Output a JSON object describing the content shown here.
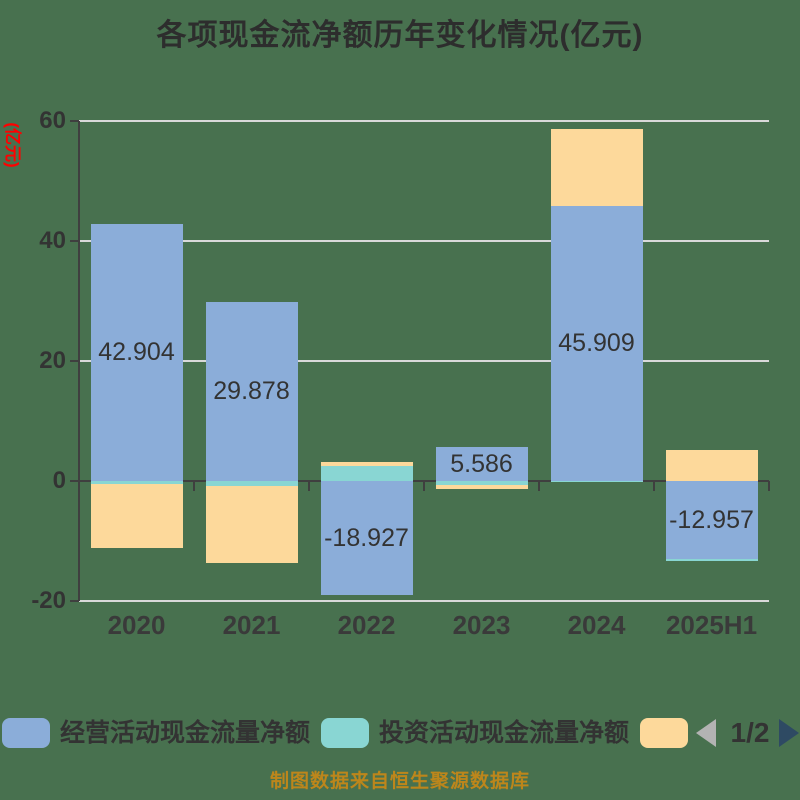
{
  "title": "各项现金流净额历年变化情况(亿元)",
  "y_axis": {
    "unit_label": "(亿元)",
    "ticks": [
      60,
      40,
      20,
      0,
      -20
    ]
  },
  "chart_data": {
    "type": "bar",
    "stacked": true,
    "title": "各项现金流净额历年变化情况(亿元)",
    "ylabel": "(亿元)",
    "ylim": [
      -20,
      60
    ],
    "grid": true,
    "legend_position": "bottom",
    "categories": [
      "2020",
      "2021",
      "2022",
      "2023",
      "2024",
      "2025H1"
    ],
    "series": [
      {
        "name": "经营活动现金流量净额",
        "color": "#8badd9",
        "values": [
          42.904,
          29.878,
          -18.927,
          5.586,
          45.909,
          -12.957
        ],
        "data_labels": [
          "42.904",
          "29.878",
          "-18.927",
          "5.586",
          "45.909",
          "-12.957"
        ]
      },
      {
        "name": "投资活动现金流量净额",
        "color": "#89d6d3",
        "values": [
          -0.5,
          -0.9,
          2.5,
          -0.6,
          -0.2,
          -0.3
        ]
      },
      {
        "name": "",
        "color": "#fdd99b",
        "values": [
          -10.6,
          -12.75,
          0.6,
          -0.7,
          12.7,
          5.2
        ]
      }
    ]
  },
  "legend": {
    "items": [
      {
        "label": "经营活动现金流量净额",
        "color": "#8badd9"
      },
      {
        "label": "投资活动现金流量净额",
        "color": "#89d6d3"
      },
      {
        "label": "",
        "color": "#fdd99b"
      }
    ],
    "pagination": {
      "current": "1/2"
    }
  },
  "caption": "制图数据来自恒生聚源数据库",
  "colors": {
    "background": "#48714f",
    "gridline": "#d9d9d9",
    "axis": "#3f3f3f",
    "tick_label": "#333333",
    "title": "#2d2d2d",
    "ylabel_unit": "#ff0000",
    "caption": "#bd861b",
    "value_label": "#333333",
    "pager_prev": "#b3b3b3",
    "pager_next": "#2e4a63"
  }
}
